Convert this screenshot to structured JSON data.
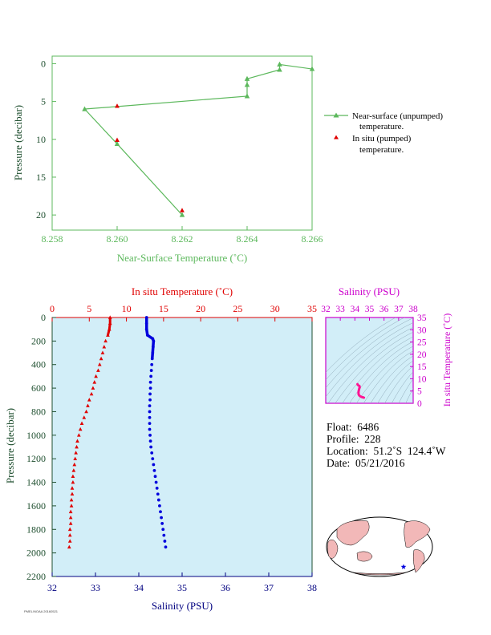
{
  "top_chart": {
    "x_title": "Near-Surface Temperature (˚C)",
    "y_title": "Pressure (decibar)",
    "x_ticks": [
      "8.258",
      "8.260",
      "8.262",
      "8.264",
      "8.266"
    ],
    "y_ticks": [
      "0",
      "5",
      "10",
      "15",
      "20"
    ],
    "legend": {
      "near_surface_line1": "Near-surface (unpumped)",
      "near_surface_line2": "temperature.",
      "in_situ_line1": "In situ (pumped)",
      "in_situ_line2": "temperature."
    }
  },
  "main_chart": {
    "top_axis_title": "In situ Temperature (˚C)",
    "bottom_axis_title": "Salinity (PSU)",
    "y_title": "Pressure (decibar)",
    "temp_ticks": [
      "0",
      "5",
      "10",
      "15",
      "20",
      "25",
      "30",
      "35"
    ],
    "sal_ticks": [
      "32",
      "33",
      "34",
      "35",
      "36",
      "37",
      "38"
    ],
    "pressure_ticks": [
      "0",
      "200",
      "400",
      "600",
      "800",
      "1000",
      "1200",
      "1400",
      "1600",
      "1800",
      "2000",
      "2200"
    ]
  },
  "ts_chart": {
    "x_title": "Salinity (PSU)",
    "y_title": "In situ Temperature (˚C)",
    "x_ticks": [
      "32",
      "33",
      "34",
      "35",
      "36",
      "37",
      "38"
    ],
    "y_ticks": [
      "0",
      "5",
      "10",
      "15",
      "20",
      "25",
      "30",
      "35"
    ]
  },
  "info": {
    "float": "Float:  6486",
    "profile": "Profile:  228",
    "location": "Location:  51.2˚S  124.4˚W",
    "date": "Date:  05/21/2016"
  },
  "footer_text": "PMEL/NOAA 20160521",
  "colors": {
    "green": "#5cb85c",
    "red": "#e00000",
    "blue": "#0000dd",
    "magenta": "#cc00cc",
    "plot_bg": "#d2eef8",
    "dark_green": "#1f4f2f",
    "label_navy": "#000080"
  },
  "chart_data": [
    {
      "type": "line",
      "name": "near-surface",
      "xlim": [
        8.258,
        8.266
      ],
      "ylim": [
        22,
        -1
      ],
      "series": [
        {
          "name": "Near-surface (unpumped) temperature.",
          "points": [
            [
              8.266,
              0.7
            ],
            [
              8.265,
              0.1
            ],
            [
              8.265,
              0.8
            ],
            [
              8.264,
              2.0
            ],
            [
              8.264,
              2.8
            ],
            [
              8.264,
              4.3
            ],
            [
              8.259,
              6.0
            ],
            [
              8.26,
              10.6
            ],
            [
              8.262,
              20.0
            ]
          ]
        },
        {
          "name": "In situ (pumped) temperature.",
          "points": [
            [
              8.26,
              5.6
            ],
            [
              8.26,
              10.1
            ],
            [
              8.262,
              19.4
            ]
          ]
        }
      ]
    },
    {
      "type": "scatter",
      "name": "profile",
      "ylim": [
        2200,
        0
      ],
      "temp_xlim": [
        0,
        35
      ],
      "sal_xlim": [
        32,
        38
      ],
      "series": [
        {
          "name": "In situ Temperature (˚C)",
          "points": [
            [
              7.8,
              0
            ],
            [
              7.8,
              50
            ],
            [
              7.7,
              100
            ],
            [
              7.5,
              150
            ],
            [
              7.2,
              200
            ],
            [
              7.0,
              250
            ],
            [
              6.8,
              300
            ],
            [
              6.6,
              350
            ],
            [
              6.4,
              400
            ],
            [
              6.2,
              450
            ],
            [
              5.9,
              500
            ],
            [
              5.7,
              550
            ],
            [
              5.5,
              600
            ],
            [
              5.3,
              650
            ],
            [
              5.0,
              700
            ],
            [
              4.8,
              750
            ],
            [
              4.6,
              800
            ],
            [
              4.3,
              850
            ],
            [
              4.0,
              900
            ],
            [
              3.8,
              950
            ],
            [
              3.6,
              1000
            ],
            [
              3.4,
              1050
            ],
            [
              3.3,
              1100
            ],
            [
              3.2,
              1150
            ],
            [
              3.1,
              1200
            ],
            [
              3.0,
              1250
            ],
            [
              2.9,
              1300
            ],
            [
              2.8,
              1350
            ],
            [
              2.8,
              1400
            ],
            [
              2.7,
              1450
            ],
            [
              2.7,
              1500
            ],
            [
              2.6,
              1550
            ],
            [
              2.6,
              1600
            ],
            [
              2.5,
              1650
            ],
            [
              2.5,
              1700
            ],
            [
              2.5,
              1750
            ],
            [
              2.4,
              1800
            ],
            [
              2.4,
              1850
            ],
            [
              2.4,
              1900
            ],
            [
              2.3,
              1950
            ]
          ]
        },
        {
          "name": "Salinity (PSU)",
          "points": [
            [
              34.18,
              0
            ],
            [
              34.18,
              50
            ],
            [
              34.18,
              100
            ],
            [
              34.2,
              150
            ],
            [
              34.32,
              180
            ],
            [
              34.34,
              200
            ],
            [
              34.33,
              250
            ],
            [
              34.32,
              300
            ],
            [
              34.31,
              350
            ],
            [
              34.3,
              400
            ],
            [
              34.29,
              450
            ],
            [
              34.28,
              500
            ],
            [
              34.27,
              550
            ],
            [
              34.27,
              600
            ],
            [
              34.26,
              650
            ],
            [
              34.26,
              700
            ],
            [
              34.25,
              750
            ],
            [
              34.25,
              800
            ],
            [
              34.25,
              850
            ],
            [
              34.25,
              900
            ],
            [
              34.25,
              950
            ],
            [
              34.26,
              1000
            ],
            [
              34.27,
              1050
            ],
            [
              34.28,
              1100
            ],
            [
              34.3,
              1150
            ],
            [
              34.32,
              1200
            ],
            [
              34.34,
              1250
            ],
            [
              34.36,
              1300
            ],
            [
              34.38,
              1350
            ],
            [
              34.4,
              1400
            ],
            [
              34.42,
              1450
            ],
            [
              34.44,
              1500
            ],
            [
              34.46,
              1550
            ],
            [
              34.48,
              1600
            ],
            [
              34.5,
              1650
            ],
            [
              34.52,
              1700
            ],
            [
              34.54,
              1750
            ],
            [
              34.56,
              1800
            ],
            [
              34.58,
              1850
            ],
            [
              34.6,
              1900
            ],
            [
              34.62,
              1950
            ]
          ]
        }
      ]
    },
    {
      "type": "line",
      "name": "ts-diagram",
      "xlim": [
        32,
        38
      ],
      "ylim": [
        0,
        35
      ],
      "series": [
        {
          "name": "T-S",
          "points": [
            [
              34.18,
              7.8
            ],
            [
              34.2,
              7.5
            ],
            [
              34.32,
              7.0
            ],
            [
              34.33,
              6.5
            ],
            [
              34.3,
              6.0
            ],
            [
              34.28,
              5.5
            ],
            [
              34.26,
              5.0
            ],
            [
              34.25,
              4.5
            ],
            [
              34.25,
              4.0
            ],
            [
              34.26,
              3.6
            ],
            [
              34.3,
              3.2
            ],
            [
              34.36,
              2.9
            ],
            [
              34.42,
              2.7
            ],
            [
              34.5,
              2.5
            ],
            [
              34.58,
              2.4
            ],
            [
              34.62,
              2.3
            ]
          ]
        }
      ]
    }
  ]
}
